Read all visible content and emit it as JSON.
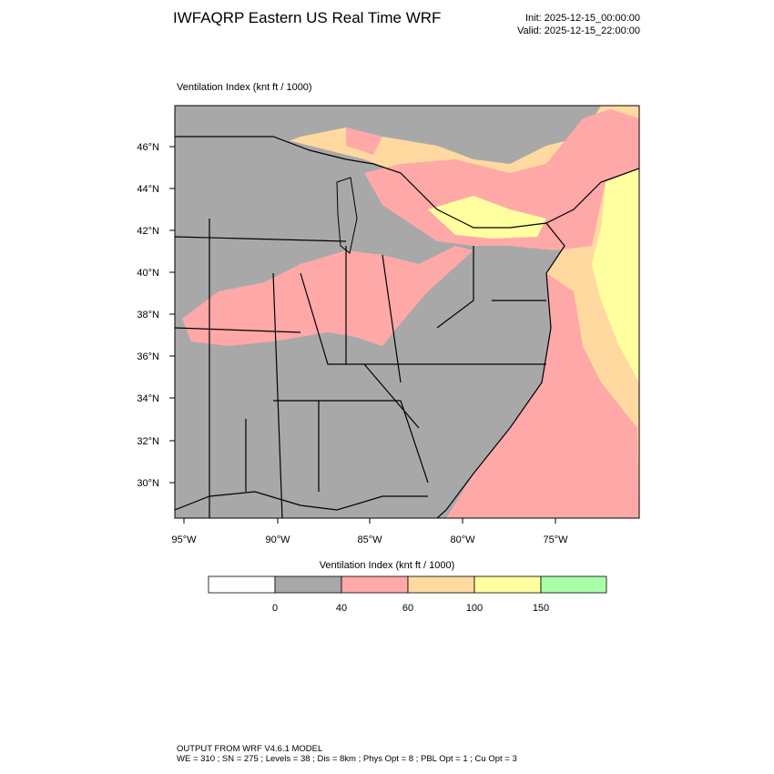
{
  "header": {
    "title": "IWFAQRP Eastern US Real Time WRF",
    "init": "Init: 2025-12-15_00:00:00",
    "valid": "Valid: 2025-12-15_22:00:00"
  },
  "map": {
    "subtitle": "Ventilation Index   (knt ft / 1000)",
    "lat_labels": [
      "46°N",
      "44°N",
      "42°N",
      "40°N",
      "38°N",
      "36°N",
      "34°N",
      "32°N",
      "30°N"
    ],
    "lon_labels": [
      "95°W",
      "90°W",
      "85°W",
      "80°W",
      "75°W"
    ],
    "colors": {
      "v0": "#ffffff",
      "v0_40": "#a8a8a8",
      "v40_60": "#ffa8a8",
      "v60_100": "#ffd9a0",
      "v100_150": "#ffff9f",
      "v150p": "#a8ffa8",
      "ocean": "#ffd9a0",
      "canada": "#a8a8a8"
    }
  },
  "colorbar": {
    "title": "Ventilation Index  (knt ft / 1000)",
    "boxes": [
      "#ffffff",
      "#a8a8a8",
      "#ffa8a8",
      "#ffd9a0",
      "#ffff9f",
      "#a8ffa8"
    ],
    "labels": [
      "0",
      "40",
      "60",
      "100",
      "150"
    ]
  },
  "footer": {
    "line1": "OUTPUT FROM WRF V4.6.1 MODEL",
    "line2": "WE = 310 ; SN = 275 ; Levels = 38 ; Dis = 8km ; Phys Opt = 8 ; PBL Opt = 1 ; Cu Opt = 3"
  }
}
